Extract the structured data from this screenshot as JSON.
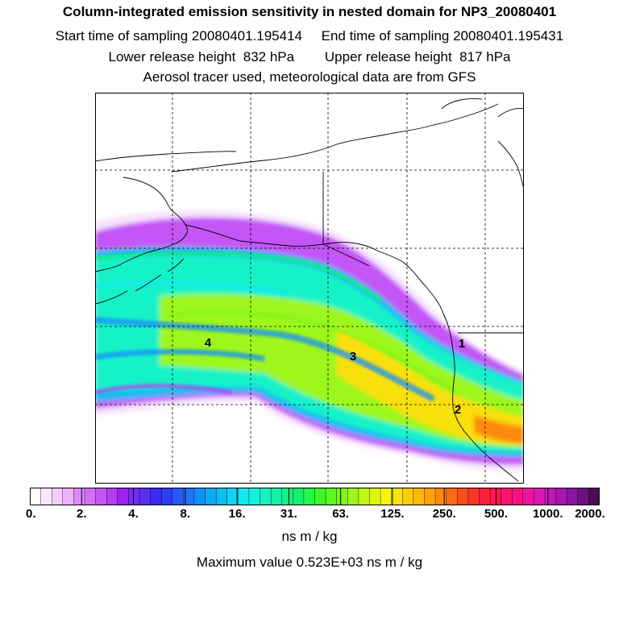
{
  "header": {
    "title": "Column-integrated emission sensitivity in nested domain for NP3_20080401",
    "sampling": "Start time of sampling 20080401.195414     End time of sampling 20080401.195431",
    "release": "Lower release height  832 hPa        Upper release height  817 hPa",
    "tracer": "Aerosol tracer used, meteorological data are from GFS"
  },
  "map": {
    "labels": [
      "4",
      "3",
      "1",
      "2"
    ],
    "colors": {
      "frame": "#000000",
      "grid": "#000000",
      "coast": "#000000"
    }
  },
  "colorbar": {
    "ticks": [
      "0.",
      "2.",
      "4.",
      "8.",
      "16.",
      "31.",
      "63.",
      "125.",
      "250.",
      "500.",
      "1000.",
      "2000."
    ],
    "colors": [
      "#ffffff",
      "#fbe6ff",
      "#f5ccff",
      "#efb2ff",
      "#dd8af6",
      "#d070f4",
      "#c455f6",
      "#b73cf6",
      "#9a22f2",
      "#7a2af6",
      "#5a2df0",
      "#3a2cf0",
      "#2e3df6",
      "#2a58f8",
      "#1f74f7",
      "#1490f7",
      "#10a7f4",
      "#0dbcf2",
      "#12d3f5",
      "#13e7f0",
      "#14f2dc",
      "#14f2c0",
      "#13f2a6",
      "#12f28a",
      "#14f26c",
      "#23f54c",
      "#3cf82b",
      "#5df71e",
      "#7ff51b",
      "#9df61a",
      "#bef714",
      "#dcf80f",
      "#f8f40b",
      "#fae107",
      "#fccd05",
      "#fdb806",
      "#fda008",
      "#fd8a0c",
      "#fd6a13",
      "#fd4d1c",
      "#fd3327",
      "#fd1e38",
      "#fd1850",
      "#fb1469",
      "#f61284",
      "#ec149e",
      "#de16b4",
      "#c217b6",
      "#a517b0",
      "#8c15a4",
      "#6b127c",
      "#4b0c55"
    ],
    "units": "ns m / kg",
    "max_label": "Maximum value  0.523E+03 ns m / kg"
  }
}
